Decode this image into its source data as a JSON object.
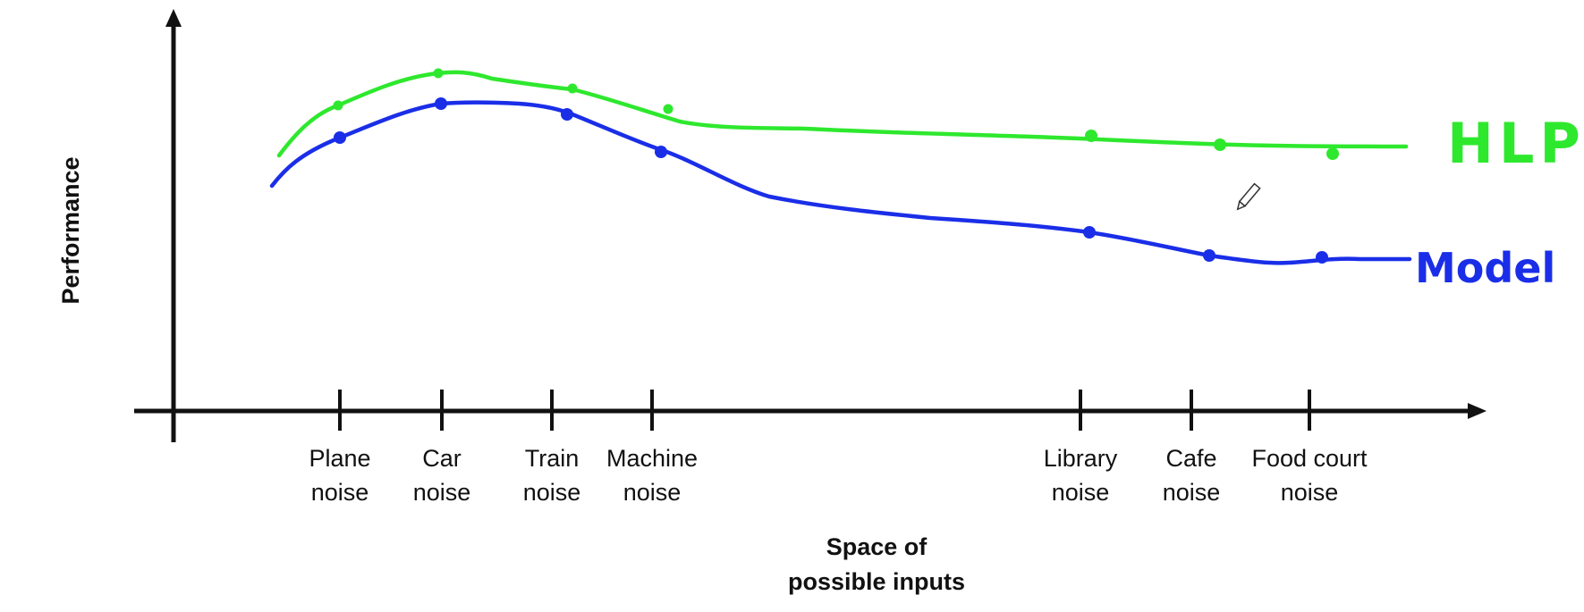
{
  "chart_data": {
    "type": "line",
    "ylabel": "Performance",
    "xlabel_line1": "Space of",
    "xlabel_line2": "possible inputs",
    "categories": [
      {
        "line1": "Plane",
        "line2": "noise"
      },
      {
        "line1": "Car",
        "line2": "noise"
      },
      {
        "line1": "Train",
        "line2": "noise"
      },
      {
        "line1": "Machine",
        "line2": "noise"
      },
      {
        "line1": "Library",
        "line2": "noise"
      },
      {
        "line1": "Cafe",
        "line2": "noise"
      },
      {
        "line1": "Food court",
        "line2": "noise"
      }
    ],
    "series": [
      {
        "name": "HLP",
        "color": "#2ee82e"
      },
      {
        "name": "Model",
        "color": "#1a2ee8"
      }
    ],
    "grid": false,
    "legend": "right, handwritten next to curve ends"
  },
  "icons": {
    "cursor": "pencil-cursor-icon"
  }
}
